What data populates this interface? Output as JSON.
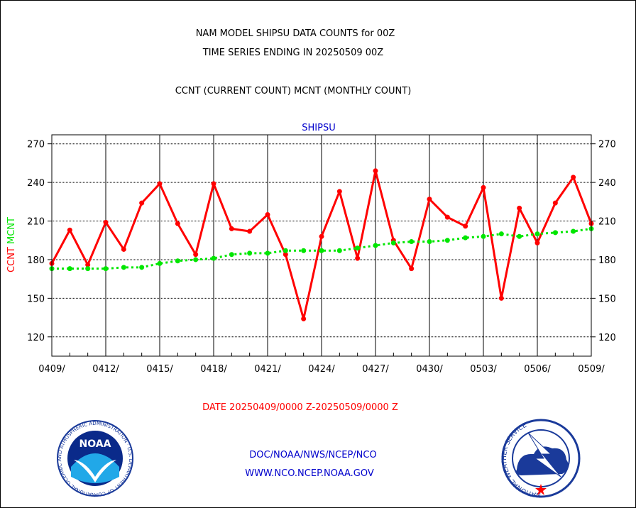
{
  "header": {
    "line1": "NAM MODEL SHIPSU DATA COUNTS for 00Z",
    "line2": "TIME SERIES ENDING IN 20250509 00Z",
    "line3": "CCNT (CURRENT COUNT) MCNT (MONTHLY COUNT)"
  },
  "date_range": "DATE 20250409/0000 Z-20250509/0000 Z",
  "footer": {
    "line1": "DOC/NOAA/NWS/NCEP/NCO",
    "line2": "WWW.NCO.NCEP.NOAA.GOV"
  },
  "logos": {
    "noaa_text": "NOAA",
    "noaa_ring": "NATIONAL OCEANIC AND ATMOSPHERIC ADMINISTRATION · U.S. DEPARTMENT OF COMMERCE",
    "nws_ring": "NATIONAL WEATHER SERVICE"
  },
  "colors": {
    "ccnt": "#ff0000",
    "mcnt": "#00e600",
    "title_blue": "#0000cc",
    "date_red": "#ff0000"
  },
  "chart_data": {
    "type": "line",
    "title": "SHIPSU",
    "ylabel_parts": [
      {
        "text": "CCNT",
        "color": "#ff0000"
      },
      {
        "text": "MCNT",
        "color": "#00e600"
      }
    ],
    "ylim": [
      105,
      277
    ],
    "yticks": [
      120,
      150,
      180,
      210,
      240,
      270
    ],
    "x_range": [
      0,
      30
    ],
    "x_tick_positions": [
      0,
      3,
      6,
      9,
      12,
      15,
      18,
      21,
      24,
      27,
      30
    ],
    "x_tick_labels": [
      "0409/",
      "0412/",
      "0415/",
      "0418/",
      "0421/",
      "0424/",
      "0427/",
      "0430/",
      "0503/",
      "0506/",
      "0509/"
    ],
    "grid": true,
    "series": [
      {
        "name": "CCNT",
        "style": "solid",
        "values": [
          177,
          203,
          176,
          209,
          188,
          224,
          239,
          208,
          184,
          239,
          204,
          202,
          215,
          184,
          134,
          198,
          233,
          181,
          249,
          195,
          173,
          227,
          213,
          206,
          236,
          150,
          220,
          193,
          224,
          244,
          208
        ]
      },
      {
        "name": "MCNT",
        "style": "dotted",
        "values": [
          173,
          173,
          173,
          173,
          174,
          174,
          177,
          179,
          180,
          181,
          184,
          185,
          185,
          187,
          187,
          187,
          187,
          189,
          191,
          193,
          194,
          194,
          195,
          197,
          198,
          200,
          198,
          200,
          201,
          202,
          204
        ]
      }
    ]
  }
}
